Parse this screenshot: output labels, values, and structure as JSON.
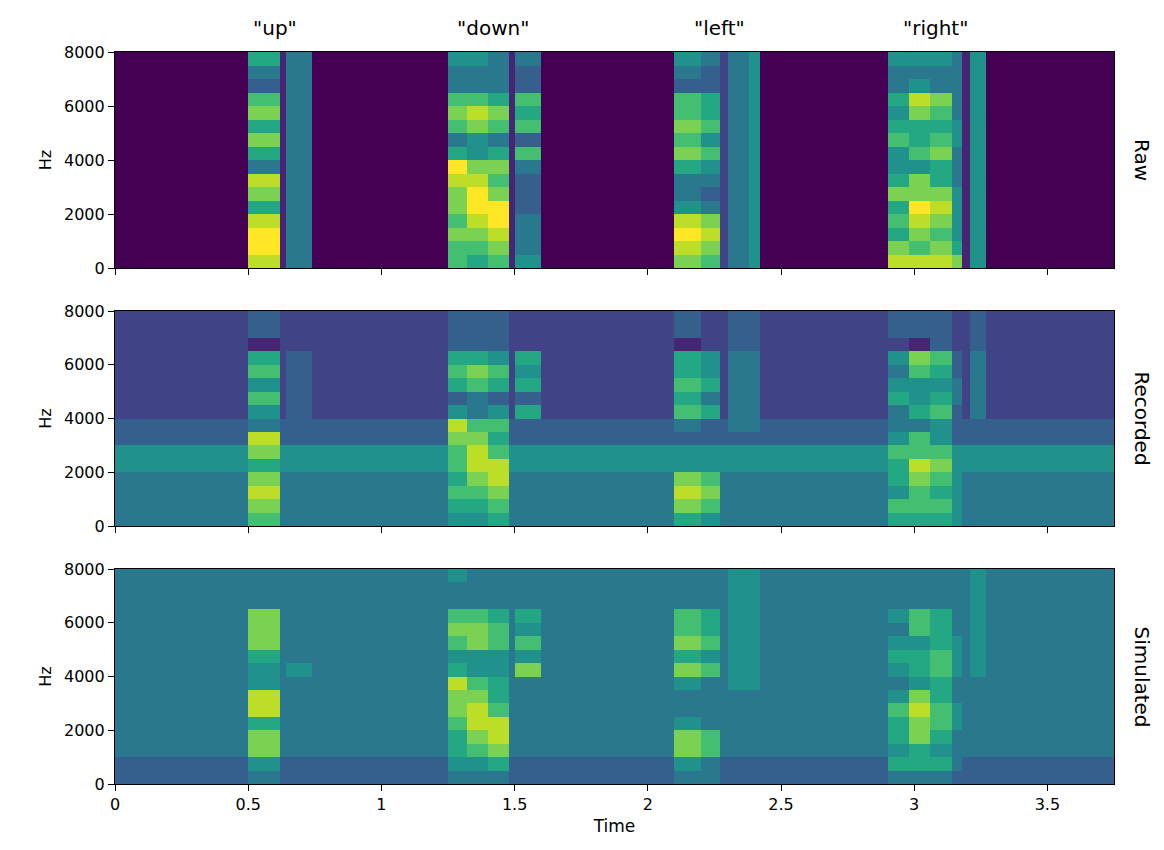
{
  "chart_data": [
    {
      "type": "heatmap",
      "title": "Raw",
      "ylabel": "Hz",
      "tick_labels": "y",
      "annotations": [
        {
          "text": "\"up\"",
          "x": 0.6
        },
        {
          "text": "\"down\"",
          "x": 1.42
        },
        {
          "text": "\"left\"",
          "x": 2.27
        },
        {
          "text": "\"right\"",
          "x": 3.08
        }
      ],
      "xlim": [
        0,
        3.75
      ],
      "xticks": [
        0,
        0.5,
        1,
        1.5,
        2,
        2.5,
        3,
        3.5
      ],
      "ylim": [
        0,
        8000
      ],
      "yticks": [
        0,
        2000,
        4000,
        6000,
        8000
      ],
      "color": "Viridis",
      "zlim": [
        0,
        10
      ],
      "x_edges": [
        0,
        0.5,
        0.62,
        0.64,
        0.74,
        1.25,
        1.32,
        1.4,
        1.48,
        1.5,
        1.6,
        2.1,
        2.2,
        2.27,
        2.3,
        2.38,
        2.42,
        2.9,
        2.98,
        3.06,
        3.14,
        3.18,
        3.21,
        3.27,
        3.75
      ],
      "y_edges": [
        0,
        500,
        1000,
        1500,
        2000,
        2500,
        3000,
        3500,
        4000,
        4500,
        5000,
        5500,
        6000,
        6500,
        7000,
        7500,
        8000
      ],
      "cells": [
        [
          0,
          9,
          1,
          4,
          0,
          7,
          6,
          7,
          1,
          5,
          0,
          8,
          7,
          2,
          4,
          5,
          0,
          9,
          9,
          9,
          8,
          1,
          5,
          0
        ],
        [
          0,
          10,
          1,
          4,
          0,
          7,
          7,
          8,
          1,
          4,
          0,
          9,
          8,
          2,
          4,
          5,
          0,
          8,
          7,
          8,
          6,
          1,
          5,
          0
        ],
        [
          0,
          10,
          1,
          4,
          0,
          8,
          8,
          9,
          1,
          4,
          0,
          10,
          9,
          2,
          4,
          5,
          0,
          6,
          8,
          7,
          5,
          1,
          5,
          0
        ],
        [
          0,
          9,
          1,
          4,
          0,
          7,
          9,
          10,
          1,
          4,
          0,
          9,
          8,
          2,
          4,
          5,
          0,
          7,
          9,
          8,
          5,
          1,
          5,
          0
        ],
        [
          0,
          6,
          1,
          4,
          0,
          8,
          10,
          10,
          1,
          3,
          0,
          5,
          4,
          2,
          4,
          5,
          0,
          6,
          10,
          9,
          5,
          1,
          5,
          0
        ],
        [
          0,
          8,
          1,
          4,
          0,
          8,
          10,
          8,
          1,
          3,
          0,
          4,
          3,
          2,
          4,
          5,
          0,
          8,
          8,
          8,
          5,
          1,
          5,
          0
        ],
        [
          0,
          9,
          1,
          4,
          0,
          9,
          9,
          7,
          1,
          3,
          0,
          4,
          4,
          2,
          4,
          5,
          0,
          6,
          8,
          6,
          4,
          1,
          5,
          0
        ],
        [
          0,
          4,
          1,
          4,
          0,
          10,
          8,
          8,
          1,
          4,
          0,
          6,
          5,
          2,
          4,
          5,
          0,
          5,
          5,
          6,
          4,
          1,
          5,
          0
        ],
        [
          0,
          6,
          1,
          4,
          0,
          6,
          5,
          6,
          1,
          7,
          0,
          8,
          7,
          2,
          4,
          5,
          0,
          5,
          7,
          8,
          4,
          1,
          5,
          0
        ],
        [
          0,
          8,
          1,
          4,
          0,
          4,
          5,
          4,
          1,
          3,
          0,
          7,
          5,
          2,
          4,
          5,
          0,
          7,
          6,
          7,
          5,
          1,
          5,
          0
        ],
        [
          0,
          6,
          1,
          4,
          0,
          7,
          8,
          7,
          1,
          7,
          0,
          8,
          7,
          2,
          4,
          5,
          0,
          6,
          6,
          6,
          5,
          1,
          5,
          0
        ],
        [
          0,
          8,
          1,
          4,
          0,
          8,
          9,
          8,
          1,
          6,
          0,
          7,
          6,
          2,
          4,
          5,
          0,
          5,
          8,
          7,
          4,
          1,
          5,
          0
        ],
        [
          0,
          7,
          1,
          4,
          0,
          7,
          7,
          6,
          1,
          7,
          0,
          7,
          6,
          2,
          4,
          5,
          0,
          6,
          9,
          8,
          4,
          1,
          5,
          0
        ],
        [
          0,
          3,
          1,
          4,
          0,
          4,
          4,
          4,
          1,
          3,
          0,
          3,
          3,
          2,
          4,
          5,
          0,
          4,
          5,
          4,
          4,
          1,
          5,
          0
        ],
        [
          0,
          4,
          1,
          4,
          0,
          4,
          4,
          4,
          1,
          3,
          0,
          4,
          3,
          2,
          4,
          5,
          0,
          4,
          4,
          4,
          4,
          1,
          5,
          0
        ],
        [
          0,
          6,
          1,
          4,
          0,
          5,
          5,
          4,
          1,
          4,
          0,
          5,
          4,
          2,
          4,
          5,
          0,
          5,
          5,
          5,
          4,
          1,
          5,
          0
        ]
      ]
    },
    {
      "type": "heatmap",
      "title": "Recorded",
      "ylabel": "Hz",
      "tick_labels": "y",
      "xlim": [
        0,
        3.75
      ],
      "xticks": [
        0,
        0.5,
        1,
        1.5,
        2,
        2.5,
        3,
        3.5
      ],
      "ylim": [
        0,
        8000
      ],
      "yticks": [
        0,
        2000,
        4000,
        6000,
        8000
      ],
      "color": "Viridis",
      "zlim": [
        0,
        10
      ],
      "x_edges": [
        0,
        0.5,
        0.62,
        0.64,
        0.74,
        1.25,
        1.32,
        1.4,
        1.48,
        1.5,
        1.6,
        2.1,
        2.2,
        2.27,
        2.3,
        2.38,
        2.42,
        2.9,
        2.98,
        3.06,
        3.14,
        3.18,
        3.21,
        3.27,
        3.75
      ],
      "y_edges": [
        0,
        500,
        1000,
        1500,
        2000,
        2500,
        3000,
        3500,
        4000,
        4500,
        5000,
        5500,
        6000,
        6500,
        7000,
        7500,
        8000
      ],
      "cells": [
        [
          4,
          7,
          4,
          4,
          4,
          5,
          5,
          6,
          4,
          4,
          4,
          6,
          5,
          4,
          4,
          4,
          4,
          6,
          6,
          6,
          5,
          4,
          4,
          4
        ],
        [
          4,
          8,
          4,
          4,
          4,
          6,
          6,
          7,
          4,
          4,
          4,
          8,
          7,
          4,
          4,
          4,
          4,
          7,
          7,
          7,
          5,
          4,
          4,
          4
        ],
        [
          4,
          9,
          4,
          4,
          4,
          7,
          7,
          8,
          4,
          4,
          4,
          9,
          8,
          4,
          4,
          4,
          4,
          5,
          7,
          6,
          5,
          4,
          4,
          4
        ],
        [
          4,
          8,
          4,
          4,
          4,
          6,
          8,
          9,
          4,
          4,
          4,
          8,
          7,
          4,
          4,
          4,
          4,
          6,
          8,
          7,
          5,
          4,
          4,
          4
        ],
        [
          5,
          6,
          5,
          5,
          5,
          7,
          9,
          9,
          5,
          5,
          5,
          5,
          5,
          5,
          5,
          5,
          5,
          6,
          9,
          8,
          5,
          5,
          5,
          5
        ],
        [
          5,
          8,
          5,
          5,
          5,
          7,
          9,
          7,
          5,
          5,
          5,
          5,
          5,
          5,
          5,
          5,
          5,
          7,
          7,
          7,
          5,
          5,
          5,
          5
        ],
        [
          3,
          9,
          3,
          3,
          3,
          8,
          8,
          6,
          3,
          3,
          3,
          3,
          3,
          3,
          3,
          3,
          3,
          5,
          7,
          5,
          3,
          3,
          3,
          3
        ],
        [
          3,
          4,
          3,
          3,
          3,
          9,
          7,
          7,
          3,
          3,
          3,
          4,
          3,
          3,
          4,
          4,
          3,
          4,
          4,
          5,
          3,
          3,
          3,
          3
        ],
        [
          2,
          5,
          2,
          3,
          2,
          5,
          4,
          5,
          2,
          6,
          2,
          7,
          6,
          2,
          4,
          4,
          2,
          4,
          6,
          7,
          3,
          2,
          4,
          2
        ],
        [
          2,
          7,
          2,
          3,
          2,
          3,
          4,
          3,
          2,
          3,
          2,
          6,
          4,
          2,
          4,
          4,
          2,
          6,
          5,
          6,
          4,
          2,
          4,
          2
        ],
        [
          2,
          5,
          2,
          3,
          2,
          6,
          7,
          6,
          2,
          6,
          2,
          7,
          6,
          2,
          4,
          4,
          2,
          5,
          5,
          5,
          4,
          2,
          4,
          2
        ],
        [
          2,
          7,
          2,
          3,
          2,
          7,
          8,
          7,
          2,
          5,
          2,
          6,
          5,
          2,
          4,
          4,
          2,
          4,
          7,
          6,
          3,
          2,
          4,
          2
        ],
        [
          2,
          6,
          2,
          3,
          2,
          6,
          6,
          5,
          2,
          6,
          2,
          6,
          5,
          2,
          4,
          4,
          2,
          5,
          8,
          7,
          3,
          2,
          4,
          2
        ],
        [
          2,
          1,
          2,
          2,
          2,
          3,
          3,
          3,
          2,
          2,
          2,
          1,
          2,
          2,
          3,
          3,
          2,
          2,
          1,
          3,
          2,
          2,
          3,
          2
        ],
        [
          2,
          3,
          2,
          2,
          2,
          3,
          3,
          3,
          2,
          2,
          2,
          3,
          2,
          2,
          3,
          3,
          2,
          3,
          3,
          3,
          2,
          2,
          3,
          2
        ],
        [
          2,
          3,
          2,
          2,
          2,
          3,
          3,
          3,
          2,
          2,
          2,
          3,
          2,
          2,
          3,
          3,
          2,
          3,
          3,
          3,
          2,
          2,
          3,
          2
        ]
      ]
    },
    {
      "type": "heatmap",
      "title": "Simulated",
      "xlabel": "Time",
      "ylabel": "Hz",
      "xlim": [
        0,
        3.75
      ],
      "xticks": [
        0,
        0.5,
        1,
        1.5,
        2,
        2.5,
        3,
        3.5
      ],
      "ylim": [
        0,
        8000
      ],
      "yticks": [
        0,
        2000,
        4000,
        6000,
        8000
      ],
      "color": "Viridis",
      "zlim": [
        0,
        10
      ],
      "x_edges": [
        0,
        0.5,
        0.62,
        0.64,
        0.74,
        1.25,
        1.32,
        1.4,
        1.48,
        1.5,
        1.6,
        2.1,
        2.2,
        2.27,
        2.3,
        2.38,
        2.42,
        2.9,
        2.98,
        3.06,
        3.14,
        3.18,
        3.21,
        3.27,
        3.75
      ],
      "y_edges": [
        0,
        500,
        1000,
        1500,
        2000,
        2500,
        3000,
        3500,
        4000,
        4500,
        5000,
        5500,
        6000,
        6500,
        7000,
        7500,
        8000
      ],
      "cells": [
        [
          3,
          4,
          3,
          3,
          3,
          4,
          4,
          4,
          3,
          3,
          3,
          4,
          4,
          3,
          3,
          3,
          3,
          4,
          4,
          4,
          3,
          3,
          3,
          3
        ],
        [
          3,
          5,
          3,
          3,
          3,
          5,
          5,
          6,
          3,
          3,
          3,
          5,
          4,
          3,
          3,
          3,
          3,
          6,
          6,
          6,
          4,
          3,
          3,
          3
        ],
        [
          4,
          8,
          4,
          4,
          4,
          6,
          7,
          8,
          4,
          4,
          4,
          8,
          7,
          4,
          4,
          4,
          4,
          5,
          6,
          5,
          4,
          4,
          4,
          4
        ],
        [
          4,
          8,
          4,
          4,
          4,
          6,
          8,
          9,
          4,
          4,
          4,
          8,
          7,
          4,
          4,
          4,
          4,
          6,
          8,
          6,
          4,
          4,
          4,
          4
        ],
        [
          4,
          6,
          4,
          4,
          4,
          7,
          9,
          9,
          4,
          4,
          4,
          5,
          4,
          4,
          4,
          4,
          4,
          6,
          8,
          7,
          5,
          4,
          4,
          4
        ],
        [
          4,
          9,
          4,
          4,
          4,
          8,
          9,
          7,
          4,
          4,
          4,
          4,
          4,
          4,
          4,
          4,
          4,
          7,
          9,
          7,
          5,
          4,
          4,
          4
        ],
        [
          4,
          9,
          4,
          4,
          4,
          8,
          8,
          6,
          4,
          4,
          4,
          4,
          4,
          4,
          4,
          4,
          4,
          5,
          8,
          6,
          4,
          4,
          4,
          4
        ],
        [
          4,
          5,
          4,
          4,
          4,
          9,
          7,
          6,
          4,
          4,
          4,
          5,
          4,
          4,
          5,
          5,
          4,
          4,
          5,
          6,
          4,
          4,
          4,
          4
        ],
        [
          4,
          5,
          4,
          5,
          4,
          6,
          5,
          5,
          4,
          8,
          4,
          8,
          7,
          4,
          5,
          5,
          4,
          5,
          6,
          7,
          5,
          4,
          5,
          4
        ],
        [
          4,
          6,
          4,
          4,
          4,
          5,
          5,
          5,
          4,
          5,
          4,
          6,
          5,
          4,
          5,
          5,
          4,
          6,
          6,
          7,
          5,
          4,
          5,
          4
        ],
        [
          4,
          8,
          4,
          4,
          4,
          7,
          8,
          7,
          4,
          7,
          4,
          8,
          7,
          4,
          5,
          5,
          4,
          5,
          5,
          6,
          5,
          4,
          5,
          4
        ],
        [
          4,
          8,
          4,
          4,
          4,
          8,
          8,
          7,
          4,
          5,
          4,
          7,
          6,
          4,
          5,
          5,
          4,
          4,
          7,
          6,
          4,
          4,
          5,
          4
        ],
        [
          4,
          8,
          4,
          4,
          4,
          7,
          7,
          6,
          4,
          6,
          4,
          7,
          6,
          4,
          5,
          5,
          4,
          5,
          7,
          6,
          4,
          4,
          5,
          4
        ],
        [
          4,
          4,
          4,
          4,
          4,
          4,
          4,
          4,
          4,
          4,
          4,
          4,
          4,
          4,
          5,
          5,
          4,
          4,
          4,
          4,
          4,
          4,
          5,
          4
        ],
        [
          4,
          4,
          4,
          4,
          4,
          4,
          4,
          4,
          4,
          4,
          4,
          4,
          4,
          4,
          5,
          5,
          4,
          4,
          4,
          4,
          4,
          4,
          5,
          4
        ],
        [
          4,
          4,
          4,
          4,
          4,
          5,
          4,
          4,
          4,
          4,
          4,
          4,
          4,
          4,
          5,
          5,
          4,
          4,
          4,
          4,
          4,
          4,
          5,
          4
        ]
      ]
    }
  ]
}
